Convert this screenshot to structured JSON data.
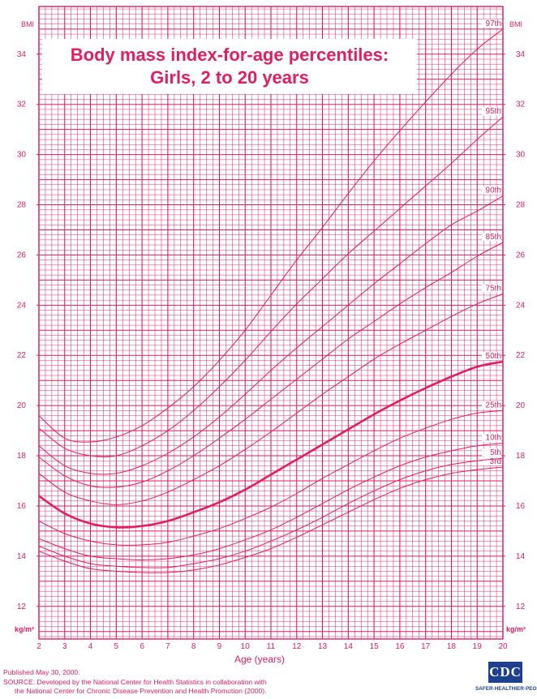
{
  "chart_data": {
    "type": "line",
    "title": "Body mass index-for-age percentiles:",
    "subtitle": "Girls, 2 to 20 years",
    "xlabel": "Age (years)",
    "ylabel_top": "BMI",
    "ylabel_bottom": "kg/m²",
    "xlim": [
      2,
      20
    ],
    "ylim": [
      10.7,
      35.9
    ],
    "x_ticks": [
      2,
      3,
      4,
      5,
      6,
      7,
      8,
      9,
      10,
      11,
      12,
      13,
      14,
      15,
      16,
      17,
      18,
      19,
      20
    ],
    "y_ticks": [
      12,
      14,
      16,
      18,
      20,
      22,
      24,
      26,
      28,
      30,
      32,
      34
    ],
    "grid": true,
    "accent_color": "#e11d63",
    "x": [
      2,
      3,
      4,
      5,
      6,
      7,
      8,
      9,
      10,
      11,
      12,
      13,
      14,
      15,
      16,
      17,
      18,
      19,
      20
    ],
    "series": [
      {
        "name": "3rd",
        "values": [
          14.2,
          13.8,
          13.5,
          13.4,
          13.35,
          13.35,
          13.45,
          13.65,
          13.95,
          14.3,
          14.75,
          15.25,
          15.75,
          16.25,
          16.7,
          17.05,
          17.3,
          17.45,
          17.55
        ]
      },
      {
        "name": "5th",
        "values": [
          14.4,
          14.0,
          13.7,
          13.6,
          13.55,
          13.55,
          13.7,
          13.9,
          14.2,
          14.6,
          15.05,
          15.55,
          16.1,
          16.6,
          17.05,
          17.4,
          17.65,
          17.8,
          17.9
        ]
      },
      {
        "name": "10th",
        "values": [
          14.7,
          14.3,
          14.0,
          13.9,
          13.85,
          13.9,
          14.05,
          14.3,
          14.65,
          15.05,
          15.55,
          16.1,
          16.65,
          17.15,
          17.6,
          17.95,
          18.2,
          18.4,
          18.5
        ]
      },
      {
        "name": "25th",
        "values": [
          15.4,
          14.9,
          14.6,
          14.45,
          14.45,
          14.55,
          14.8,
          15.1,
          15.5,
          15.95,
          16.5,
          17.1,
          17.65,
          18.2,
          18.7,
          19.1,
          19.45,
          19.7,
          19.8
        ]
      },
      {
        "name": "50th",
        "values": [
          16.4,
          15.7,
          15.3,
          15.15,
          15.2,
          15.4,
          15.75,
          16.15,
          16.65,
          17.25,
          17.85,
          18.45,
          19.05,
          19.65,
          20.2,
          20.7,
          21.15,
          21.55,
          21.75
        ]
      },
      {
        "name": "75th",
        "values": [
          17.3,
          16.55,
          16.2,
          16.05,
          16.2,
          16.55,
          17.05,
          17.6,
          18.25,
          18.95,
          19.7,
          20.45,
          21.15,
          21.85,
          22.45,
          23.0,
          23.55,
          24.05,
          24.45
        ]
      },
      {
        "name": "85th",
        "values": [
          17.95,
          17.2,
          16.8,
          16.75,
          16.95,
          17.4,
          18.0,
          18.7,
          19.45,
          20.25,
          21.05,
          21.85,
          22.65,
          23.35,
          24.05,
          24.7,
          25.3,
          25.95,
          26.5
        ]
      },
      {
        "name": "90th",
        "values": [
          18.4,
          17.6,
          17.3,
          17.3,
          17.6,
          18.1,
          18.75,
          19.55,
          20.45,
          21.4,
          22.3,
          23.15,
          24.0,
          24.85,
          25.65,
          26.45,
          27.2,
          27.75,
          28.35
        ]
      },
      {
        "name": "95th",
        "values": [
          19.1,
          18.3,
          18.0,
          18.0,
          18.4,
          19.0,
          19.8,
          20.75,
          21.8,
          22.95,
          24.05,
          25.05,
          26.05,
          26.95,
          27.85,
          28.75,
          29.65,
          30.6,
          31.5
        ]
      },
      {
        "name": "97th",
        "values": [
          19.6,
          18.7,
          18.55,
          18.75,
          19.2,
          19.9,
          20.75,
          21.8,
          23.0,
          24.4,
          25.8,
          27.1,
          28.45,
          29.75,
          30.95,
          32.1,
          33.2,
          34.2,
          35.0
        ]
      }
    ]
  },
  "footer": {
    "line1": "Published May 30, 2000.",
    "line2": "SOURCE: Developed by the National Center for Health Statistics in collaboration with",
    "line3": "the National Center for Chronic Disease Prevention and Health Promotion (2000)."
  },
  "logo": {
    "text": "CDC",
    "tagline": "SAFER·HEALTHIER·PEOPLE™"
  }
}
